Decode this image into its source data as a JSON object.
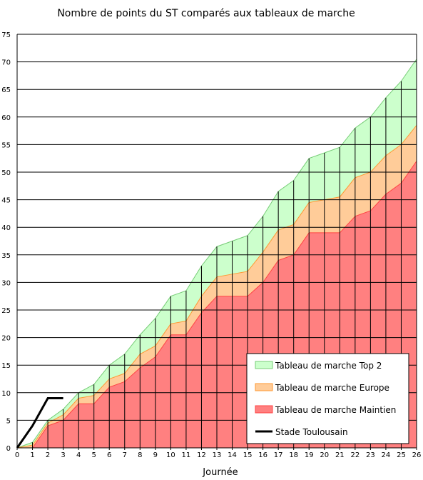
{
  "chart_data": {
    "type": "area",
    "title": "Nombre de points du ST comparés aux tableaux de marche",
    "xlabel": "Journée",
    "ylabel": "",
    "xlim": [
      0,
      26
    ],
    "ylim": [
      0,
      75
    ],
    "x_ticks": [
      "0",
      "1",
      "2",
      "3",
      "4",
      "5",
      "6",
      "7",
      "8",
      "9",
      "10",
      "11",
      "12",
      "13",
      "14",
      "15",
      "16",
      "17",
      "18",
      "19",
      "20",
      "21",
      "22",
      "23",
      "24",
      "25",
      "26"
    ],
    "y_ticks": [
      "0",
      "5",
      "10",
      "15",
      "20",
      "25",
      "30",
      "35",
      "40",
      "45",
      "50",
      "55",
      "60",
      "65",
      "70",
      "75"
    ],
    "grid": "horizontal",
    "legend_position": "bottom-right",
    "x": [
      0,
      1,
      2,
      3,
      4,
      5,
      6,
      7,
      8,
      9,
      10,
      11,
      12,
      13,
      14,
      15,
      16,
      17,
      18,
      19,
      20,
      21,
      22,
      23,
      24,
      25,
      26
    ],
    "series": [
      {
        "name": "Tableau de marche Top 2",
        "kind": "area",
        "color": "#ccffcc",
        "edge": "#77cc77",
        "values": [
          0,
          1,
          5,
          7,
          10,
          11.5,
          15,
          17,
          20.5,
          23.5,
          27.5,
          28.5,
          33,
          36.5,
          37.5,
          38.5,
          42,
          46.5,
          48.5,
          52.5,
          53.5,
          54.5,
          58,
          60,
          63.5,
          66.5,
          70.5
        ]
      },
      {
        "name": "Tableau de marche Europe",
        "kind": "area",
        "color": "#ffcc99",
        "edge": "#ff9933",
        "values": [
          0,
          0.5,
          4.5,
          6,
          9,
          9.5,
          12.5,
          13.5,
          17,
          18.5,
          22.5,
          23,
          27.5,
          31,
          31.5,
          32,
          35.5,
          39.5,
          40.5,
          44.5,
          45,
          45.5,
          49,
          50,
          53,
          55,
          58.5
        ]
      },
      {
        "name": "Tableau de marche Maintien",
        "kind": "area",
        "color": "#ff8080",
        "edge": "#ff4444",
        "values": [
          0,
          0,
          4,
          5,
          8,
          8,
          11,
          12,
          14.5,
          16.5,
          20.5,
          20.5,
          24.5,
          27.5,
          27.5,
          27.5,
          30,
          34,
          35,
          39,
          39,
          39,
          42,
          43,
          46,
          48,
          52
        ]
      },
      {
        "name": "Stade Toulousain",
        "kind": "line",
        "color": "#000000",
        "x": [
          0,
          1,
          2,
          3
        ],
        "values": [
          0,
          4,
          9,
          9
        ]
      }
    ]
  }
}
